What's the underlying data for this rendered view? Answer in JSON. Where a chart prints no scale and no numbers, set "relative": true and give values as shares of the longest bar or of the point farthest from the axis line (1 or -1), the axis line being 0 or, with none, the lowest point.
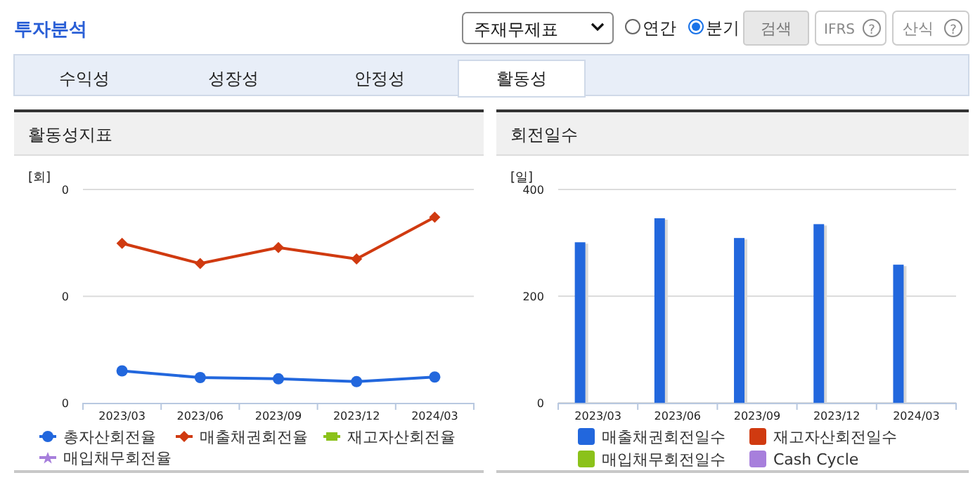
{
  "chart_data": [
    {
      "type": "other",
      "title": "투자분석",
      "annotations": [
        "주재무제표",
        "연간",
        "분기",
        "검색",
        "IFRS",
        "?",
        "산식",
        "?",
        "수익성",
        "성장성",
        "안정성",
        "활동성"
      ]
    },
    {
      "type": "line",
      "title": "활동성지표",
      "ylabel": "[회]",
      "relative": true,
      "categories": [
        "2023/03",
        "2023/06",
        "2023/09",
        "2023/12",
        "2024/03"
      ],
      "annotations": [
        "0",
        "0",
        "0"
      ],
      "ref_lines": [
        {
          "axis": "y",
          "value": 0.574,
          "color": "#dcdcdc"
        },
        {
          "axis": "y",
          "value": 1.149,
          "color": "#dcdcdc"
        }
      ],
      "legend": "bottom",
      "series": [
        {
          "name": "총자산회전율",
          "color": "#2267dd",
          "marker": "circle",
          "values": [
            0.172,
            0.136,
            0.129,
            0.114,
            0.139
          ]
        },
        {
          "name": "매출채권회전율",
          "color": "#d03a10",
          "marker": "diamond",
          "values": [
            0.859,
            0.75,
            0.836,
            0.775,
            1
          ]
        },
        {
          "name": "재고자산회전율",
          "color": "#8bc21a",
          "marker": "square",
          "values": [
            null,
            null,
            null,
            null,
            null
          ]
        },
        {
          "name": "매입채무회전율",
          "color": "#a77fdc",
          "marker": "star",
          "values": [
            null,
            null,
            null,
            null,
            null
          ]
        }
      ]
    },
    {
      "type": "bar",
      "title": "회전일수",
      "ylabel": "[일]",
      "categories": [
        "2023/03",
        "2023/06",
        "2023/09",
        "2023/12",
        "2024/03"
      ],
      "ylim": [
        0,
        400
      ],
      "yticks": [
        0,
        200,
        400
      ],
      "grid": "y",
      "legend": "bottom",
      "series": [
        {
          "name": "매출채권회전일수",
          "color": "#2267dd",
          "values": [
            301,
            346,
            309,
            335,
            259
          ]
        },
        {
          "name": "재고자산회전일수",
          "color": "#d03a10",
          "values": [
            null,
            null,
            null,
            null,
            null
          ]
        },
        {
          "name": "매입채무회전일수",
          "color": "#8bc21a",
          "values": [
            null,
            null,
            null,
            null,
            null
          ]
        },
        {
          "name": "Cash Cycle",
          "color": "#a77fdc",
          "values": [
            null,
            null,
            null,
            null,
            null
          ]
        }
      ]
    }
  ]
}
